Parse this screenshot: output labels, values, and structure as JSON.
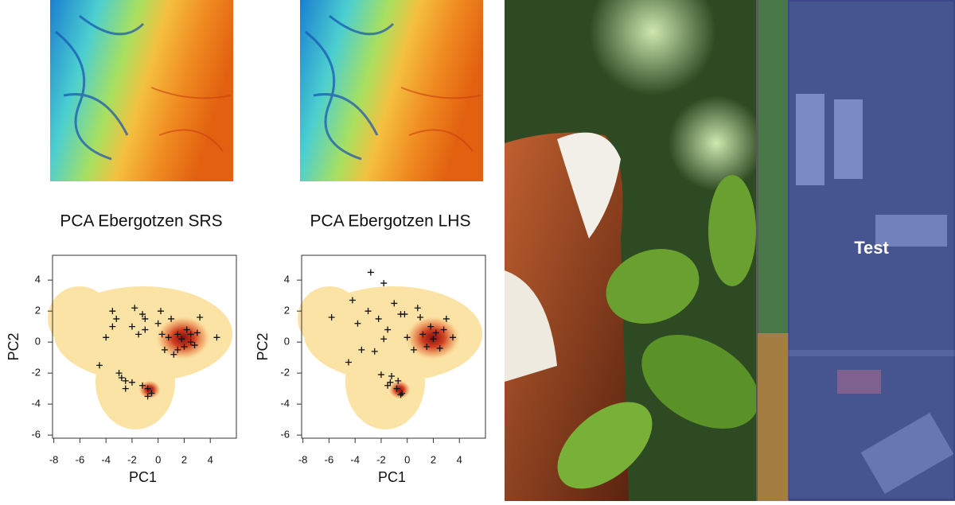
{
  "chart_data": [
    {
      "type": "scatter",
      "title": "PCA Ebergotzen SRS",
      "xlabel": "PC1",
      "ylabel": "PC2",
      "xlim": [
        -8.1,
        6
      ],
      "ylim": [
        -6.2,
        5.6
      ],
      "xticks": [
        -8,
        -6,
        -4,
        -2,
        0,
        2,
        4
      ],
      "yticks": [
        -6,
        -4,
        -2,
        0,
        2,
        4
      ],
      "color": "#111111",
      "x": [
        -4,
        -3.5,
        -3.2,
        -2.8,
        -2.5,
        -2,
        -1.8,
        -1.5,
        -1.2,
        -1,
        -0.8,
        -0.5,
        0,
        0.3,
        0.5,
        0.8,
        1,
        1.2,
        1.5,
        1.8,
        2,
        2.2,
        2.5,
        2.8,
        3,
        3.2,
        -3.5,
        -3,
        -2.5,
        -1.2,
        -1,
        -0.8,
        -4.5,
        -2,
        0.2,
        1.5,
        2.5,
        4.5
      ],
      "y": [
        0.3,
        2,
        1.5,
        -2.3,
        -2.5,
        1,
        2.2,
        0.5,
        1.8,
        0.8,
        -3,
        -3.3,
        1.2,
        0.5,
        -0.5,
        0.3,
        1.5,
        -0.8,
        0.5,
        0.2,
        -0.3,
        0.8,
        0.5,
        -0.2,
        0.6,
        1.6,
        1,
        -2,
        -3,
        -2.8,
        1.5,
        -3.5,
        -1.5,
        -2.6,
        2,
        -0.5,
        0,
        0.3
      ]
    },
    {
      "type": "scatter",
      "title": "PCA Ebergotzen LHS",
      "xlabel": "PC1",
      "ylabel": "PC2",
      "xlim": [
        -8.1,
        6
      ],
      "ylim": [
        -6.2,
        5.6
      ],
      "xticks": [
        -8,
        -6,
        -4,
        -2,
        0,
        2,
        4
      ],
      "yticks": [
        -6,
        -4,
        -2,
        0,
        2,
        4
      ],
      "color": "#111111",
      "x": [
        -5.8,
        -4.5,
        -3.8,
        -3.5,
        -3,
        -2.8,
        -2.5,
        -2.2,
        -2,
        -1.8,
        -1.5,
        -1.2,
        -1,
        -0.8,
        -0.5,
        -0.2,
        0,
        0.5,
        0.8,
        1,
        1.2,
        1.5,
        1.8,
        2,
        2.2,
        2.5,
        2.8,
        3,
        3.5,
        -4.2,
        -1.3,
        -0.7,
        -0.4,
        -1.8,
        -0.5,
        -1.5
      ],
      "y": [
        1.6,
        -1.3,
        1.2,
        -0.5,
        2,
        4.5,
        -0.6,
        1.5,
        -2.1,
        3.8,
        0.8,
        -2.2,
        2.5,
        -3,
        -3.4,
        1.8,
        0.3,
        -0.5,
        2.2,
        1.6,
        0.5,
        -0.3,
        1,
        0.2,
        0.6,
        -0.4,
        0.8,
        1.5,
        0.3,
        2.7,
        -2.6,
        -2.5,
        -3.3,
        0.2,
        1.8,
        -2.8
      ]
    }
  ],
  "aerial_label": "Test"
}
